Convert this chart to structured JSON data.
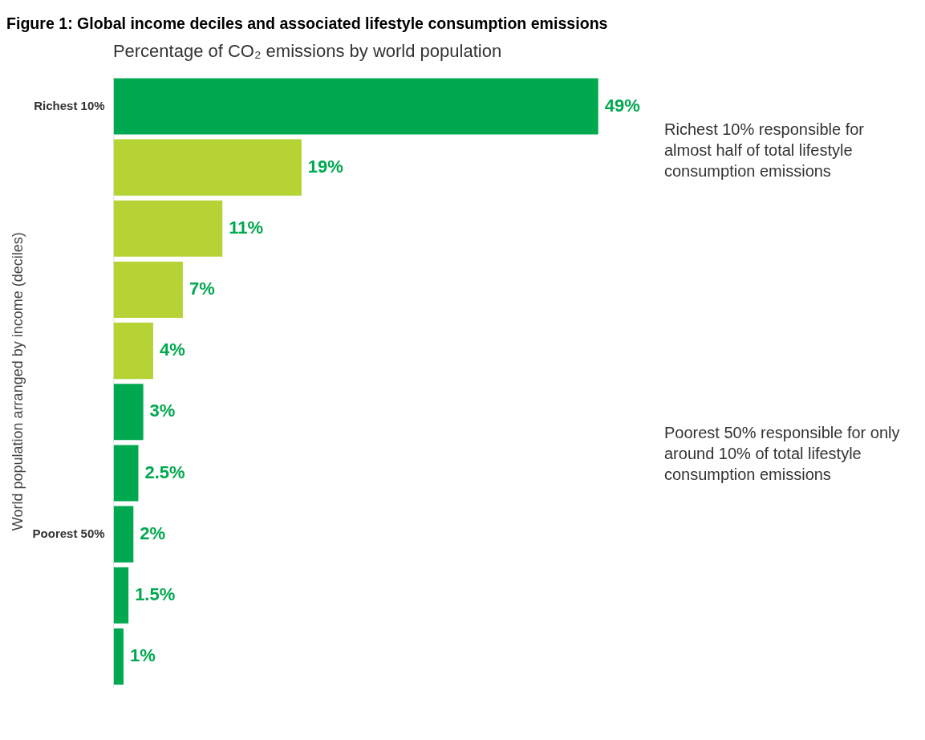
{
  "chart_data": {
    "type": "bar",
    "orientation": "horizontal",
    "title": "Figure 1: Global income deciles and associated lifestyle consumption emissions",
    "subtitle": "Percentage of CO₂ emissions by world population",
    "ylabel": "World population arranged by income (deciles)",
    "categories": [
      "Richest 10%",
      null,
      null,
      null,
      null,
      null,
      null,
      "Poorest 50%",
      null,
      null
    ],
    "values": [
      49,
      19,
      11,
      7,
      4,
      3,
      2.5,
      2,
      1.5,
      1
    ],
    "colors": [
      "#00a84f",
      "#b5d334",
      "#b5d334",
      "#b5d334",
      "#b5d334",
      "#00a84f",
      "#00a84f",
      "#00a84f",
      "#00a84f",
      "#00a84f"
    ],
    "value_labels": [
      "49%",
      "19%",
      "11%",
      "7%",
      "4%",
      "3%",
      "2.5%",
      "2%",
      "1.5%",
      "1%"
    ],
    "grid": false,
    "legend": false,
    "tick_labels": "y",
    "annotations": [
      "Richest 10% responsible for almost half of total lifestyle consumption emissions",
      "Poorest 50% responsible for only around 10% of total lifestyle consumption emissions"
    ]
  }
}
